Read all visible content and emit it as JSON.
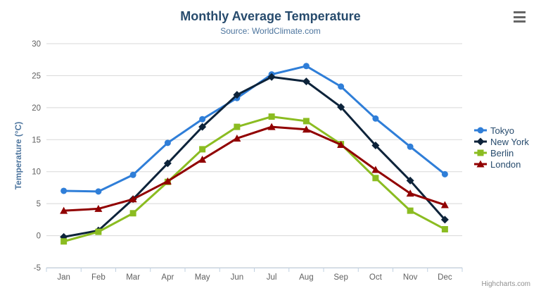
{
  "chart": {
    "title": "Monthly Average Temperature",
    "subtitle": "Source: WorldClimate.com",
    "credits": "Highcharts.com",
    "menu_icon": "hamburger-menu"
  },
  "chart_data": {
    "type": "line",
    "title": "Monthly Average Temperature",
    "subtitle": "Source: WorldClimate.com",
    "categories": [
      "Jan",
      "Feb",
      "Mar",
      "Apr",
      "May",
      "Jun",
      "Jul",
      "Aug",
      "Sep",
      "Oct",
      "Nov",
      "Dec"
    ],
    "series": [
      {
        "name": "Tokyo",
        "color": "#2f7ed8",
        "marker": "circle",
        "values": [
          7.0,
          6.9,
          9.5,
          14.5,
          18.2,
          21.5,
          25.2,
          26.5,
          23.3,
          18.3,
          13.9,
          9.6
        ]
      },
      {
        "name": "New York",
        "color": "#0d233a",
        "marker": "diamond",
        "values": [
          -0.2,
          0.8,
          5.7,
          11.3,
          17.0,
          22.0,
          24.8,
          24.1,
          20.1,
          14.1,
          8.6,
          2.5
        ]
      },
      {
        "name": "Berlin",
        "color": "#8bbc21",
        "marker": "square",
        "values": [
          -0.9,
          0.6,
          3.5,
          8.4,
          13.5,
          17.0,
          18.6,
          17.9,
          14.3,
          9.0,
          3.9,
          1.0
        ]
      },
      {
        "name": "London",
        "color": "#910000",
        "marker": "triangle",
        "values": [
          3.9,
          4.2,
          5.7,
          8.5,
          11.9,
          15.2,
          17.0,
          16.6,
          14.2,
          10.3,
          6.6,
          4.8
        ]
      }
    ],
    "xlabel": "",
    "ylabel": "Temperature (°C)",
    "ylim": [
      -5,
      30
    ],
    "ytick_step": 5,
    "grid": true,
    "legend_position": "right"
  },
  "colors": {
    "background": "#ffffff",
    "title": "#274b6d",
    "subtitle": "#4d759e",
    "axis_labels": "#606060",
    "y_axis_title": "#4d759e",
    "gridline": "#d8d8d8",
    "axis_line": "#c0d0e0",
    "legend_text": "#274b6d",
    "credits": "#909090",
    "menu_icon": "#666666"
  }
}
